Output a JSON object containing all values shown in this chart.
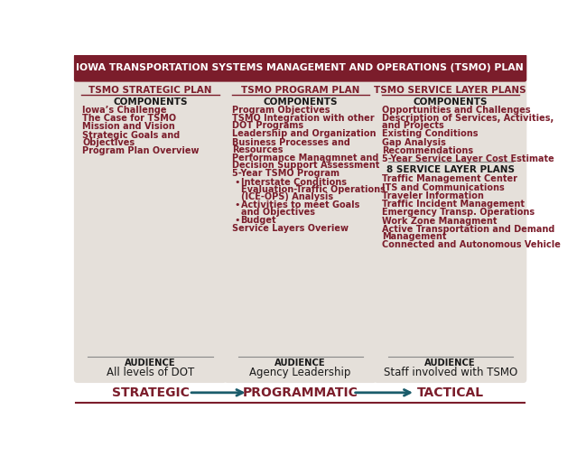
{
  "title": "IOWA TRANSPORTATION SYSTEMS MANAGEMENT AND OPERATIONS (TSMO) PLAN",
  "title_bg": "#7B1D2B",
  "title_color": "#FFFFFF",
  "box_bg": "#E5E0DA",
  "header_color": "#7B1D2B",
  "text_color": "#1A1A1A",
  "item_color": "#7B1D2B",
  "arrow_color": "#1A5C6B",
  "arrow_label_color": "#7B1D2B",
  "columns": [
    {
      "header": "TSMO STRATEGIC PLAN",
      "components_title": "COMPONENTS",
      "components": [
        "Iowa’s Challenge",
        "The Case for TSMO",
        "Mission and Vision",
        "Strategic Goals and\nObjectives",
        "Program Plan Overview"
      ],
      "bullets": [],
      "audience_label": "AUDIENCE",
      "audience_text": "All levels of DOT"
    },
    {
      "header": "TSMO PROGRAM PLAN",
      "components_title": "COMPONENTS",
      "components": [
        "Program Objectives",
        "TSMO Integration with other\nDOT Programs",
        "Leadership and Organization",
        "Business Processes and\nResources",
        "Performance Managmnet and\nDecision Support Assessment",
        "5-Year TSMO Program"
      ],
      "bullets": [
        "Interstate Conditions\nEvaluation-Traffic Operations\n(ICE-OPS) Analysis",
        "Activities to meet Goals\nand Objectives",
        "Budget"
      ],
      "after_bullets": "Service Layers Overiew",
      "audience_label": "AUDIENCE",
      "audience_text": "Agency Leadership"
    },
    {
      "header": "TSMO SERVICE LAYER PLANS",
      "components_title": "COMPONENTS",
      "components": [
        "Opportunities and Challenges",
        "Description of Services, Activities,\nand Projects",
        "Existing Conditions",
        "Gap Analysis",
        "Recommendations",
        "5-Year Service Layer Cost Estimate"
      ],
      "bullets": [],
      "service_layer_title": "8 SERVICE LAYER PLANS",
      "service_layers": [
        "Traffic Management Center",
        "ITS and Communications",
        "Traveler Information",
        "Traffic Incident Management",
        "Emergency Transp. Operations",
        "Work Zone Managment",
        "Active Transportation and Demand\nManagement",
        "Connected and Autonomous Vehicle"
      ],
      "audience_label": "AUDIENCE",
      "audience_text": "Staff involved with TSMO"
    }
  ],
  "bottom_labels": [
    "STRATEGIC",
    "PROGRAMMATIC",
    "TACTICAL"
  ]
}
